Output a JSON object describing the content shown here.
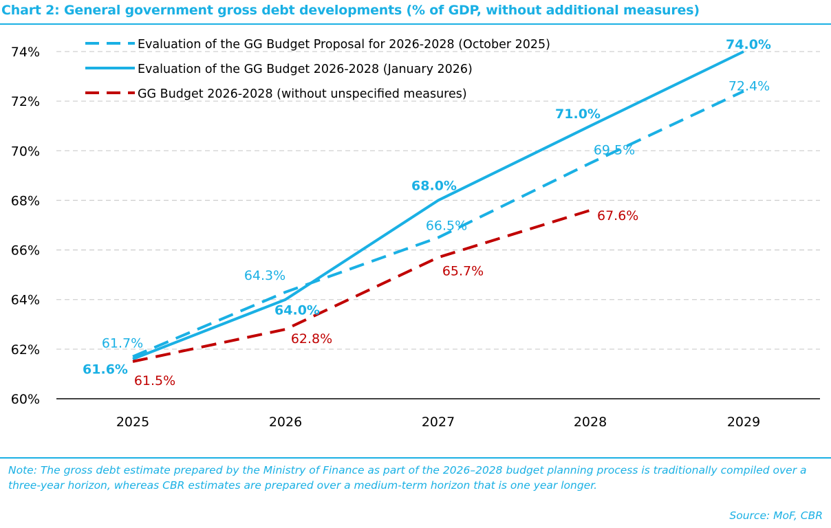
{
  "header": {
    "title": "Chart 2: General government gross debt developments (% of GDP, without additional measures)"
  },
  "footer": {
    "note": "Note: The gross debt estimate prepared by the Ministry of Finance as part of the 2026–2028 budget planning process is traditionally compiled over a three-year horizon, whereas CBR estimates are prepared over a medium-term horizon that is one year longer.",
    "source": "Source: MoF, CBR"
  },
  "colors": {
    "accent": "#1ab0e4",
    "red": "#c00000",
    "grid": "#d0d0d0",
    "axis": "#000000",
    "text": "#000000"
  },
  "chart_data": {
    "type": "line",
    "x": [
      "2025",
      "2026",
      "2027",
      "2028",
      "2029"
    ],
    "ylim": [
      60,
      74
    ],
    "yticks": [
      60,
      62,
      64,
      66,
      68,
      70,
      72,
      74
    ],
    "ytick_labels": [
      "60%",
      "62%",
      "64%",
      "66%",
      "68%",
      "70%",
      "72%",
      "74%"
    ],
    "grid": "horizontal dashed",
    "legend_position": "top-left",
    "series": [
      {
        "name": "Evaluation of the GG Budget Proposal for 2026-2028 (October 2025)",
        "color": "#1ab0e4",
        "style": "dashed",
        "values": [
          61.7,
          64.3,
          66.5,
          69.5,
          72.4
        ],
        "labels": [
          "61.7%",
          "64.3%",
          "66.5%",
          "69.5%",
          "72.4%"
        ],
        "label_weight": "normal"
      },
      {
        "name": "Evaluation of the GG Budget 2026-2028 (January 2026)",
        "color": "#1ab0e4",
        "style": "solid",
        "values": [
          61.6,
          64.0,
          68.0,
          71.0,
          74.0
        ],
        "labels": [
          "61.6%",
          "64.0%",
          "68.0%",
          "71.0%",
          "74.0%"
        ],
        "label_weight": "bold"
      },
      {
        "name": "GG Budget 2026-2028 (without unspecified measures)",
        "color": "#c00000",
        "style": "dashed",
        "values": [
          61.5,
          62.8,
          65.7,
          67.6,
          null
        ],
        "labels": [
          "61.5%",
          "62.8%",
          "65.7%",
          "67.6%",
          ""
        ],
        "label_weight": "normal"
      }
    ]
  }
}
